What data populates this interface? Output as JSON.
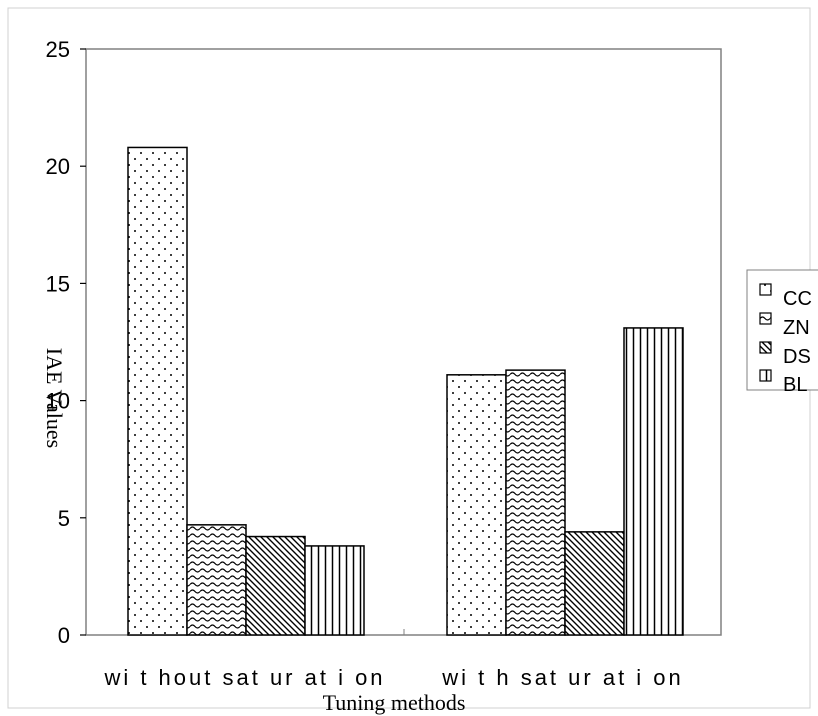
{
  "chart_data": {
    "type": "bar",
    "title": "",
    "xlabel": "Tuning methods",
    "ylabel": "IAE Values",
    "ylim": [
      0,
      25
    ],
    "yticks": [
      "0",
      "5",
      "10",
      "15",
      "20",
      "25"
    ],
    "categories": [
      "wi t hout  sat ur at i on",
      "wi t h  sat ur at i on"
    ],
    "series": [
      {
        "name": "CC",
        "values": [
          20.8,
          11.1
        ],
        "pattern": "dots"
      },
      {
        "name": "ZN",
        "values": [
          4.7,
          11.3
        ],
        "pattern": "waves"
      },
      {
        "name": "DS",
        "values": [
          4.2,
          4.4
        ],
        "pattern": "diagonal"
      },
      {
        "name": "BL",
        "values": [
          3.8,
          13.1
        ],
        "pattern": "vertical"
      }
    ],
    "legend": "right",
    "grid": false
  }
}
